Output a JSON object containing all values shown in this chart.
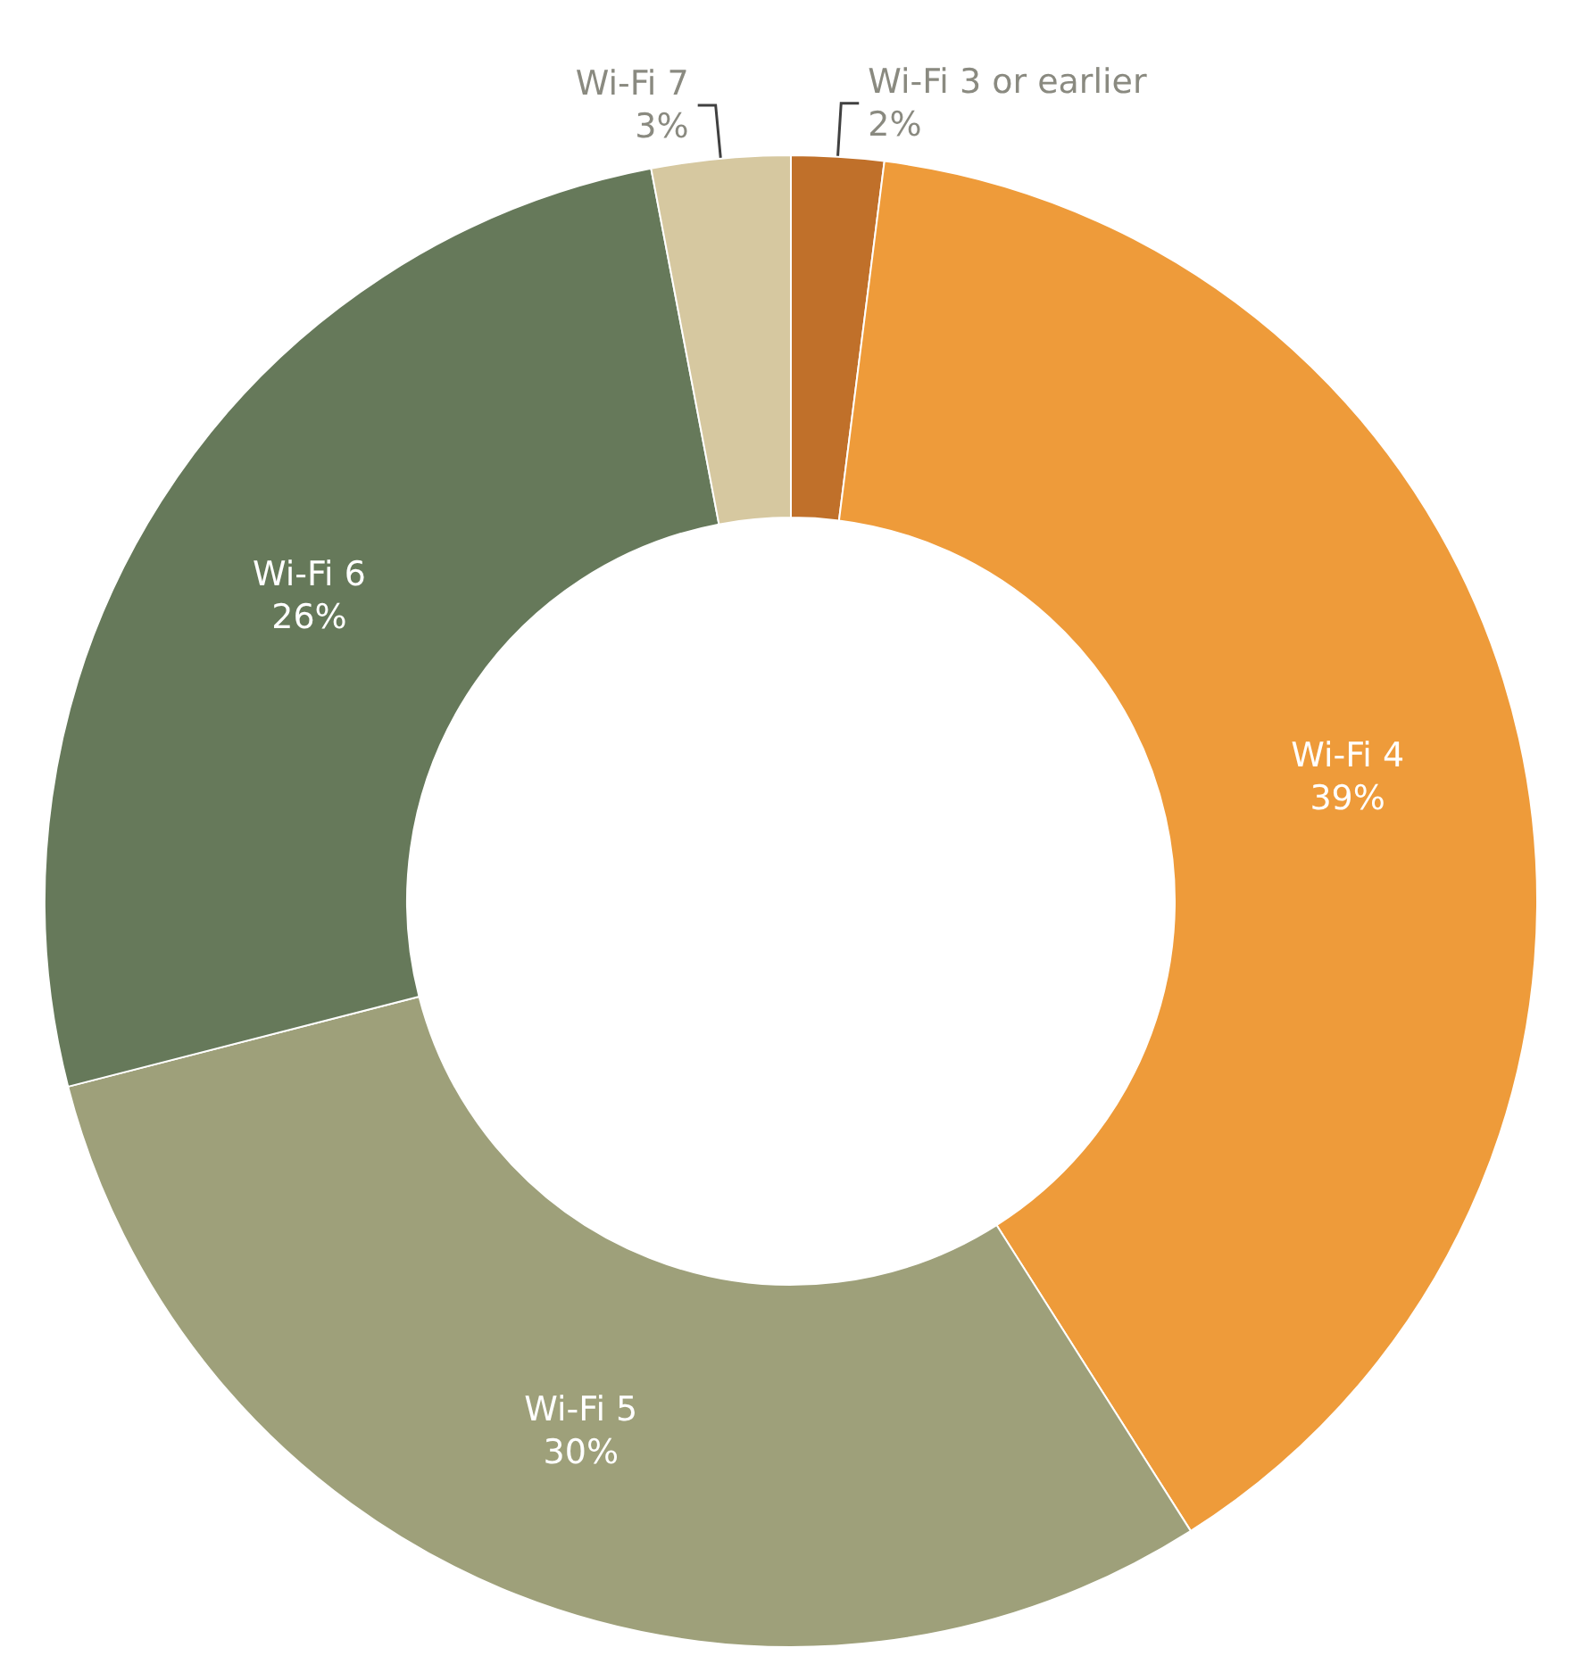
{
  "chart_data": {
    "type": "donut",
    "categories": [
      "Wi-Fi 3 or earlier",
      "Wi-Fi 4",
      "Wi-Fi 5",
      "Wi-Fi 6",
      "Wi-Fi 7"
    ],
    "values": [
      2,
      39,
      30,
      26,
      3
    ],
    "value_labels": [
      "2%",
      "39%",
      "30%",
      "26%",
      "3%"
    ],
    "colors": [
      "#c0702a",
      "#ee9b3a",
      "#9ea07a",
      "#66795a",
      "#d6c8a0"
    ],
    "legend": false
  }
}
